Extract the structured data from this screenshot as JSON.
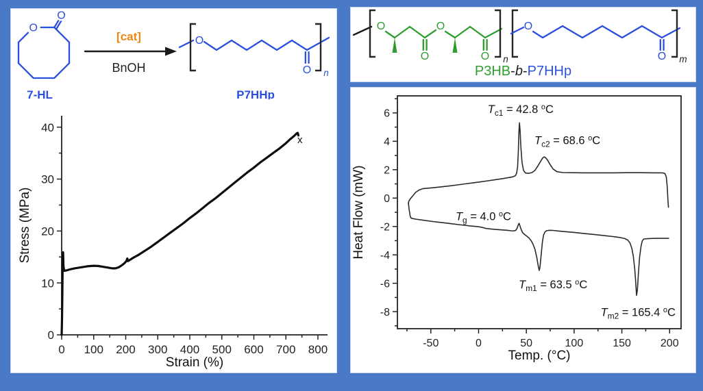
{
  "colors": {
    "frame": "#4a79c7",
    "panel": "#ffffff",
    "chem_blue": "#2b4fdd",
    "chem_green": "#2f9e2f",
    "cat_orange": "#ef8613",
    "ink": "#1a1a1a"
  },
  "scheme": {
    "cat_label": "[cat]",
    "bnoh_label": "BnOH",
    "monomer_label": "7-HL",
    "product_label": "P7HHp",
    "o_atom": "O",
    "repeat_sub": "n"
  },
  "block": {
    "o_atom": "O",
    "sub_n": "n",
    "sub_m": "m",
    "name": {
      "p3hb": "P3HB",
      "dash1": "-",
      "b": "b",
      "dash2": "-",
      "p7hhp": "P7HHp"
    }
  },
  "chart_data": [
    {
      "type": "line",
      "title": "",
      "xlabel": "Strain (%)",
      "ylabel": "Stress (MPa)",
      "xlim": [
        0,
        830
      ],
      "ylim": [
        0,
        42.2
      ],
      "xticks": [
        0,
        100,
        200,
        300,
        400,
        500,
        600,
        700,
        800
      ],
      "yticks": [
        0,
        10,
        20,
        30,
        40
      ],
      "minor_x_step": 50,
      "minor_y_step": 5,
      "frame": "lb",
      "grid": false,
      "legend": "none",
      "series": [
        {
          "name": "stress-strain-curve",
          "color": "#0d0d0d",
          "width": 3.2,
          "points": [
            [
              0,
              0
            ],
            [
              1,
              3
            ],
            [
              2,
              7
            ],
            [
              3.5,
              15.6
            ],
            [
              4.5,
              15.9
            ],
            [
              5.5,
              13.2
            ],
            [
              8,
              12.35
            ],
            [
              14,
              12.4
            ],
            [
              25,
              12.6
            ],
            [
              40,
              12.8
            ],
            [
              60,
              13.0
            ],
            [
              80,
              13.2
            ],
            [
              100,
              13.3
            ],
            [
              115,
              13.25
            ],
            [
              130,
              13.1
            ],
            [
              145,
              12.95
            ],
            [
              158,
              12.8
            ],
            [
              168,
              12.8
            ],
            [
              178,
              13.0
            ],
            [
              188,
              13.4
            ],
            [
              196,
              13.8
            ],
            [
              202,
              14.2
            ],
            [
              205,
              14.7
            ],
            [
              207,
              14.2
            ],
            [
              212,
              14.4
            ],
            [
              225,
              14.9
            ],
            [
              240,
              15.4
            ],
            [
              260,
              16.2
            ],
            [
              280,
              17.0
            ],
            [
              300,
              17.9
            ],
            [
              320,
              18.8
            ],
            [
              340,
              19.7
            ],
            [
              360,
              20.6
            ],
            [
              380,
              21.5
            ],
            [
              400,
              22.5
            ],
            [
              420,
              23.4
            ],
            [
              440,
              24.4
            ],
            [
              460,
              25.4
            ],
            [
              480,
              26.3
            ],
            [
              500,
              27.3
            ],
            [
              520,
              28.3
            ],
            [
              540,
              29.3
            ],
            [
              560,
              30.3
            ],
            [
              580,
              31.3
            ],
            [
              600,
              32.2
            ],
            [
              620,
              33.2
            ],
            [
              640,
              34.1
            ],
            [
              660,
              35.0
            ],
            [
              680,
              35.9
            ],
            [
              700,
              36.9
            ],
            [
              712,
              37.6
            ],
            [
              724,
              38.2
            ],
            [
              734,
              38.8
            ],
            [
              737,
              38.9
            ],
            [
              739,
              38.4
            ]
          ]
        }
      ],
      "annotations": [
        {
          "kind": "plain",
          "text": "x",
          "x": 744,
          "y": 36.9
        }
      ]
    },
    {
      "type": "line",
      "title": "",
      "xlabel": "Temp. (°C)",
      "ylabel": "Heat Flow (mW)",
      "xlim": [
        -85,
        212
      ],
      "ylim": [
        -9.2,
        7.2
      ],
      "xticks": [
        -50,
        0,
        50,
        100,
        150,
        200
      ],
      "yticks": [
        -8,
        -6,
        -4,
        -2,
        0,
        2,
        4,
        6
      ],
      "minor_x_step": 25,
      "minor_y_step": 1,
      "frame": "box",
      "grid": false,
      "legend": "none",
      "series": [
        {
          "name": "dsc-cooling-curve",
          "color": "#2a2a2a",
          "width": 1.6,
          "points": [
            [
              198.8,
              -0.65
            ],
            [
              198.3,
              -0.2
            ],
            [
              197.5,
              0.8
            ],
            [
              196.5,
              1.5
            ],
            [
              195,
              1.74
            ],
            [
              192,
              1.78
            ],
            [
              185,
              1.78
            ],
            [
              170,
              1.79
            ],
            [
              155,
              1.79
            ],
            [
              140,
              1.78
            ],
            [
              125,
              1.78
            ],
            [
              110,
              1.78
            ],
            [
              98,
              1.79
            ],
            [
              88,
              1.8
            ],
            [
              82,
              1.86
            ],
            [
              78,
              2.05
            ],
            [
              75,
              2.35
            ],
            [
              72,
              2.7
            ],
            [
              70,
              2.85
            ],
            [
              68.6,
              2.9
            ],
            [
              67,
              2.82
            ],
            [
              65,
              2.6
            ],
            [
              62,
              2.25
            ],
            [
              59,
              1.95
            ],
            [
              56,
              1.8
            ],
            [
              52,
              1.74
            ],
            [
              49,
              1.77
            ],
            [
              47,
              1.95
            ],
            [
              45.5,
              2.5
            ],
            [
              44.3,
              3.6
            ],
            [
              43.4,
              4.8
            ],
            [
              42.8,
              5.3
            ],
            [
              42.3,
              4.7
            ],
            [
              41.6,
              3.3
            ],
            [
              40.8,
              2.2
            ],
            [
              39.8,
              1.75
            ],
            [
              38.5,
              1.58
            ],
            [
              36,
              1.5
            ],
            [
              32,
              1.45
            ],
            [
              26,
              1.38
            ],
            [
              18,
              1.3
            ],
            [
              10,
              1.22
            ],
            [
              2,
              1.14
            ],
            [
              -6,
              1.07
            ],
            [
              -14,
              1.0
            ],
            [
              -22,
              0.93
            ],
            [
              -30,
              0.86
            ],
            [
              -38,
              0.8
            ],
            [
              -46,
              0.74
            ],
            [
              -53,
              0.7
            ],
            [
              -58,
              0.67
            ],
            [
              -62,
              0.58
            ],
            [
              -66,
              0.4
            ],
            [
              -69,
              0.15
            ],
            [
              -71.5,
              -0.05
            ],
            [
              -73,
              -0.22
            ],
            [
              -73.5,
              -0.35
            ]
          ]
        },
        {
          "name": "dsc-heating-curve",
          "color": "#2a2a2a",
          "width": 1.6,
          "points": [
            [
              -73.5,
              -0.35
            ],
            [
              -72.5,
              -0.9
            ],
            [
              -71.5,
              -1.3
            ],
            [
              -70.5,
              -1.42
            ],
            [
              -66,
              -1.48
            ],
            [
              -58,
              -1.56
            ],
            [
              -48,
              -1.65
            ],
            [
              -38,
              -1.73
            ],
            [
              -28,
              -1.81
            ],
            [
              -18,
              -1.89
            ],
            [
              -8,
              -1.97
            ],
            [
              0,
              -2.02
            ],
            [
              4,
              -2.07
            ],
            [
              7,
              -2.13
            ],
            [
              12,
              -2.17
            ],
            [
              18,
              -2.21
            ],
            [
              24,
              -2.24
            ],
            [
              30,
              -2.27
            ],
            [
              34,
              -2.3
            ],
            [
              37,
              -2.31
            ],
            [
              39,
              -2.27
            ],
            [
              40.5,
              -2.1
            ],
            [
              41.8,
              -1.83
            ],
            [
              42.5,
              -1.78
            ],
            [
              43.3,
              -1.95
            ],
            [
              44.5,
              -2.2
            ],
            [
              46,
              -2.42
            ],
            [
              48,
              -2.56
            ],
            [
              50,
              -2.66
            ],
            [
              52.5,
              -2.8
            ],
            [
              55,
              -3.0
            ],
            [
              57,
              -3.25
            ],
            [
              59,
              -3.6
            ],
            [
              61,
              -4.2
            ],
            [
              62.5,
              -4.8
            ],
            [
              63.5,
              -5.1
            ],
            [
              64.3,
              -4.85
            ],
            [
              65.5,
              -4.0
            ],
            [
              66.8,
              -3.1
            ],
            [
              68,
              -2.6
            ],
            [
              69.5,
              -2.38
            ],
            [
              71,
              -2.3
            ],
            [
              74,
              -2.27
            ],
            [
              78,
              -2.28
            ],
            [
              84,
              -2.32
            ],
            [
              92,
              -2.37
            ],
            [
              100,
              -2.42
            ],
            [
              110,
              -2.49
            ],
            [
              120,
              -2.56
            ],
            [
              130,
              -2.63
            ],
            [
              138,
              -2.69
            ],
            [
              144,
              -2.74
            ],
            [
              149,
              -2.79
            ],
            [
              153,
              -2.85
            ],
            [
              156,
              -2.95
            ],
            [
              158.5,
              -3.15
            ],
            [
              160.5,
              -3.55
            ],
            [
              162,
              -4.1
            ],
            [
              163.5,
              -5.0
            ],
            [
              164.6,
              -6.0
            ],
            [
              165.4,
              -6.85
            ],
            [
              166.2,
              -6.5
            ],
            [
              167.2,
              -5.4
            ],
            [
              168.5,
              -4.2
            ],
            [
              170,
              -3.4
            ],
            [
              171.5,
              -3.0
            ],
            [
              173,
              -2.88
            ],
            [
              178,
              -2.85
            ],
            [
              185,
              -2.84
            ],
            [
              192,
              -2.84
            ],
            [
              199,
              -2.84
            ]
          ]
        }
      ],
      "annotations": [
        {
          "kind": "tsub",
          "t": "T",
          "sub": "c1",
          "rest": " = 42.8 ",
          "sup": "o",
          "tail": "C",
          "x": 44,
          "y": 6.0
        },
        {
          "kind": "tsub",
          "t": "T",
          "sub": "c2",
          "rest": " = 68.6 ",
          "sup": "o",
          "tail": "C",
          "x": 93,
          "y": 3.8
        },
        {
          "kind": "tsub",
          "t": "T",
          "sub": "g",
          "rest": " = 4.0 ",
          "sup": "o",
          "tail": "C",
          "x": 5,
          "y": -1.55
        },
        {
          "kind": "tsub",
          "t": "T",
          "sub": "m1",
          "rest": " = 63.5 ",
          "sup": "o",
          "tail": "C",
          "x": 78,
          "y": -6.35
        },
        {
          "kind": "tsub",
          "t": "T",
          "sub": "m2",
          "rest": " = 165.4 ",
          "sup": "o",
          "tail": "C",
          "x": 167,
          "y": -8.3
        }
      ]
    }
  ]
}
